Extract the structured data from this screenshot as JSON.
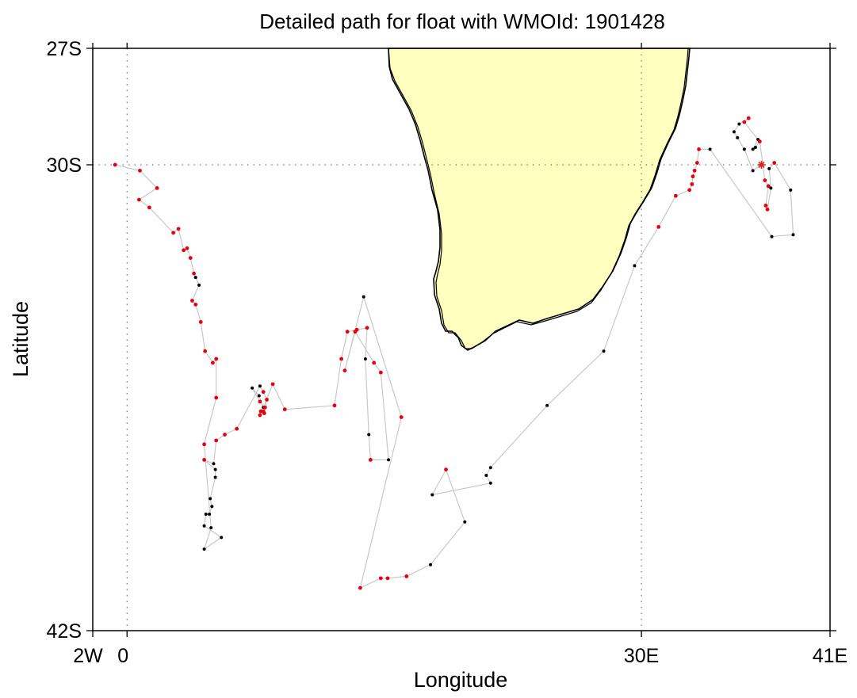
{
  "chart_data": {
    "type": "scatter",
    "title": "Detailed path for float with WMOId: 1901428",
    "xlabel": "Longitude",
    "ylabel": "Latitude",
    "xlim": [
      -2,
      41
    ],
    "ylim": [
      -42,
      -27
    ],
    "x_ticks": [
      {
        "value": -2,
        "label": "2W"
      },
      {
        "value": 0,
        "label": "0"
      },
      {
        "value": 30,
        "label": "30E"
      },
      {
        "value": 41,
        "label": "41E"
      }
    ],
    "y_ticks": [
      {
        "value": -27,
        "label": "27S"
      },
      {
        "value": -30,
        "label": "30S"
      },
      {
        "value": -42,
        "label": "42S"
      }
    ],
    "gridlines": {
      "x": [
        0,
        30
      ],
      "y": [
        -30
      ]
    },
    "colors": {
      "land": "#ffffc0",
      "coast": "#000000",
      "path": "#c8c8c8",
      "point_red": "#e8000b",
      "point_black": "#000000",
      "start_marker": "#dd2222"
    },
    "start_marker": {
      "lon": 37.0,
      "lat": -30.0
    },
    "path": [
      {
        "lon": 37.0,
        "lat": -30.0,
        "c": "red"
      },
      {
        "lon": 36.5,
        "lat": -30.15,
        "c": "black"
      },
      {
        "lon": 36.0,
        "lat": -29.6,
        "c": "black"
      },
      {
        "lon": 35.6,
        "lat": -29.3,
        "c": "black"
      },
      {
        "lon": 35.4,
        "lat": -29.15,
        "c": "black"
      },
      {
        "lon": 35.7,
        "lat": -28.95,
        "c": "black"
      },
      {
        "lon": 36.25,
        "lat": -28.8,
        "c": "red"
      },
      {
        "lon": 36.0,
        "lat": -28.9,
        "c": "red"
      },
      {
        "lon": 36.8,
        "lat": -29.35,
        "c": "black"
      },
      {
        "lon": 36.5,
        "lat": -29.6,
        "c": "black"
      },
      {
        "lon": 36.65,
        "lat": -29.55,
        "c": "black"
      },
      {
        "lon": 36.9,
        "lat": -29.4,
        "c": "red"
      },
      {
        "lon": 37.2,
        "lat": -30.4,
        "c": "red"
      },
      {
        "lon": 37.4,
        "lat": -30.55,
        "c": "red"
      },
      {
        "lon": 37.25,
        "lat": -31.05,
        "c": "red"
      },
      {
        "lon": 37.35,
        "lat": -31.15,
        "c": "red"
      },
      {
        "lon": 37.55,
        "lat": -30.6,
        "c": "black"
      },
      {
        "lon": 37.45,
        "lat": -30.1,
        "c": "black"
      },
      {
        "lon": 37.75,
        "lat": -29.95,
        "c": "red"
      },
      {
        "lon": 38.7,
        "lat": -30.65,
        "c": "black"
      },
      {
        "lon": 38.85,
        "lat": -31.8,
        "c": "black"
      },
      {
        "lon": 37.6,
        "lat": -31.85,
        "c": "black"
      },
      {
        "lon": 34.0,
        "lat": -29.6,
        "c": "black"
      },
      {
        "lon": 33.35,
        "lat": -29.6,
        "c": "red"
      },
      {
        "lon": 33.25,
        "lat": -29.95,
        "c": "red"
      },
      {
        "lon": 33.1,
        "lat": -30.15,
        "c": "red"
      },
      {
        "lon": 33.0,
        "lat": -30.3,
        "c": "red"
      },
      {
        "lon": 32.95,
        "lat": -30.5,
        "c": "red"
      },
      {
        "lon": 32.8,
        "lat": -30.65,
        "c": "red"
      },
      {
        "lon": 32.0,
        "lat": -30.8,
        "c": "red"
      },
      {
        "lon": 31.0,
        "lat": -31.6,
        "c": "red"
      },
      {
        "lon": 29.6,
        "lat": -32.6,
        "c": "black"
      },
      {
        "lon": 27.8,
        "lat": -34.8,
        "c": "black"
      },
      {
        "lon": 24.5,
        "lat": -36.2,
        "c": "black"
      },
      {
        "lon": 21.2,
        "lat": -37.8,
        "c": "black"
      },
      {
        "lon": 20.95,
        "lat": -38.0,
        "c": "black"
      },
      {
        "lon": 21.2,
        "lat": -38.2,
        "c": "black"
      },
      {
        "lon": 17.8,
        "lat": -38.5,
        "c": "black"
      },
      {
        "lon": 18.6,
        "lat": -37.85,
        "c": "red"
      },
      {
        "lon": 19.7,
        "lat": -39.2,
        "c": "black"
      },
      {
        "lon": 17.7,
        "lat": -40.3,
        "c": "black"
      },
      {
        "lon": 16.3,
        "lat": -40.6,
        "c": "red"
      },
      {
        "lon": 15.2,
        "lat": -40.65,
        "c": "red"
      },
      {
        "lon": 14.8,
        "lat": -40.65,
        "c": "red"
      },
      {
        "lon": 13.6,
        "lat": -40.9,
        "c": "red"
      },
      {
        "lon": 16.0,
        "lat": -36.5,
        "c": "red"
      },
      {
        "lon": 13.8,
        "lat": -33.4,
        "c": "black"
      },
      {
        "lon": 12.7,
        "lat": -35.3,
        "c": "red"
      },
      {
        "lon": 13.3,
        "lat": -34.3,
        "c": "red"
      },
      {
        "lon": 14.4,
        "lat": -35.1,
        "c": "red"
      },
      {
        "lon": 14.8,
        "lat": -35.35,
        "c": "red"
      },
      {
        "lon": 15.25,
        "lat": -37.6,
        "c": "black"
      },
      {
        "lon": 14.2,
        "lat": -37.6,
        "c": "red"
      },
      {
        "lon": 14.1,
        "lat": -36.95,
        "c": "black"
      },
      {
        "lon": 13.9,
        "lat": -35.0,
        "c": "black"
      },
      {
        "lon": 14.0,
        "lat": -34.2,
        "c": "red"
      },
      {
        "lon": 13.4,
        "lat": -34.25,
        "c": "red"
      },
      {
        "lon": 12.85,
        "lat": -34.3,
        "c": "red"
      },
      {
        "lon": 12.5,
        "lat": -35.0,
        "c": "red"
      },
      {
        "lon": 12.1,
        "lat": -36.2,
        "c": "red"
      },
      {
        "lon": 9.2,
        "lat": -36.3,
        "c": "red"
      },
      {
        "lon": 8.5,
        "lat": -35.65,
        "c": "red"
      },
      {
        "lon": 7.95,
        "lat": -36.25,
        "c": "black"
      },
      {
        "lon": 7.7,
        "lat": -35.95,
        "c": "black"
      },
      {
        "lon": 7.3,
        "lat": -35.75,
        "c": "black"
      },
      {
        "lon": 7.75,
        "lat": -36.1,
        "c": "red"
      },
      {
        "lon": 8.05,
        "lat": -36.25,
        "c": "red"
      },
      {
        "lon": 7.95,
        "lat": -36.35,
        "c": "red"
      },
      {
        "lon": 7.8,
        "lat": -36.35,
        "c": "red"
      },
      {
        "lon": 7.75,
        "lat": -36.45,
        "c": "red"
      },
      {
        "lon": 8.0,
        "lat": -36.4,
        "c": "red"
      },
      {
        "lon": 8.15,
        "lat": -36.05,
        "c": "red"
      },
      {
        "lon": 7.95,
        "lat": -35.85,
        "c": "red"
      },
      {
        "lon": 7.75,
        "lat": -35.7,
        "c": "black"
      },
      {
        "lon": 6.4,
        "lat": -36.8,
        "c": "red"
      },
      {
        "lon": 5.7,
        "lat": -36.95,
        "c": "red"
      },
      {
        "lon": 5.2,
        "lat": -37.1,
        "c": "red"
      },
      {
        "lon": 5.05,
        "lat": -37.7,
        "c": "black"
      },
      {
        "lon": 4.5,
        "lat": -37.6,
        "c": "red"
      },
      {
        "lon": 5.15,
        "lat": -37.85,
        "c": "black"
      },
      {
        "lon": 5.15,
        "lat": -38.05,
        "c": "black"
      },
      {
        "lon": 4.85,
        "lat": -38.6,
        "c": "black"
      },
      {
        "lon": 4.95,
        "lat": -38.8,
        "c": "black"
      },
      {
        "lon": 4.8,
        "lat": -39.0,
        "c": "black"
      },
      {
        "lon": 4.6,
        "lat": -39.0,
        "c": "black"
      },
      {
        "lon": 4.5,
        "lat": -39.3,
        "c": "black"
      },
      {
        "lon": 5.5,
        "lat": -39.6,
        "c": "black"
      },
      {
        "lon": 4.5,
        "lat": -39.9,
        "c": "black"
      },
      {
        "lon": 4.9,
        "lat": -39.35,
        "c": "black"
      },
      {
        "lon": 4.5,
        "lat": -37.2,
        "c": "red"
      },
      {
        "lon": 5.2,
        "lat": -36.0,
        "c": "red"
      },
      {
        "lon": 5.2,
        "lat": -35.0,
        "c": "red"
      },
      {
        "lon": 5.0,
        "lat": -35.1,
        "c": "red"
      },
      {
        "lon": 4.55,
        "lat": -34.8,
        "c": "red"
      },
      {
        "lon": 4.3,
        "lat": -34.05,
        "c": "red"
      },
      {
        "lon": 4.0,
        "lat": -33.6,
        "c": "red"
      },
      {
        "lon": 3.8,
        "lat": -33.5,
        "c": "red"
      },
      {
        "lon": 4.2,
        "lat": -33.1,
        "c": "black"
      },
      {
        "lon": 4.0,
        "lat": -32.9,
        "c": "black"
      },
      {
        "lon": 3.9,
        "lat": -32.8,
        "c": "red"
      },
      {
        "lon": 3.7,
        "lat": -32.4,
        "c": "red"
      },
      {
        "lon": 3.5,
        "lat": -32.15,
        "c": "red"
      },
      {
        "lon": 3.3,
        "lat": -32.2,
        "c": "red"
      },
      {
        "lon": 3.0,
        "lat": -31.65,
        "c": "red"
      },
      {
        "lon": 2.7,
        "lat": -31.75,
        "c": "red"
      },
      {
        "lon": 1.3,
        "lat": -31.1,
        "c": "red"
      },
      {
        "lon": 0.7,
        "lat": -30.9,
        "c": "red"
      },
      {
        "lon": 1.75,
        "lat": -30.6,
        "c": "red"
      },
      {
        "lon": 0.75,
        "lat": -30.15,
        "c": "red"
      },
      {
        "lon": -0.7,
        "lat": -30.0,
        "c": "red"
      }
    ]
  }
}
